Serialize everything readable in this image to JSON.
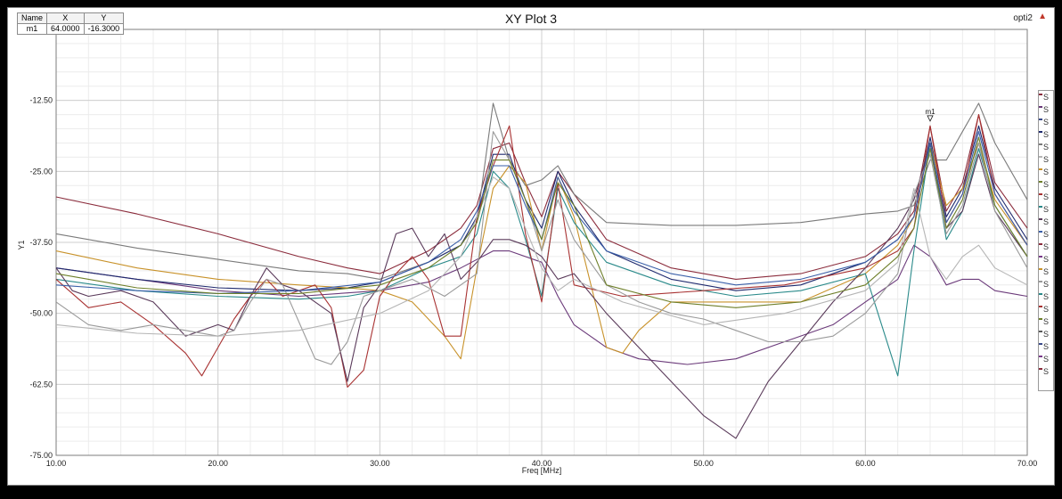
{
  "window": {
    "title": "XY Plot 3",
    "tag": "opti2",
    "tag_arrow": "▲"
  },
  "marker_table": {
    "headers": [
      "Name",
      "X",
      "Y"
    ],
    "rows": [
      {
        "name": "m1",
        "x": "64.0000",
        "y": "-16.3000"
      }
    ]
  },
  "legend": {
    "entries": [
      {
        "label": "S",
        "color": "#8b2c3c"
      },
      {
        "label": "S",
        "color": "#6b3a7a"
      },
      {
        "label": "S",
        "color": "#3a4a8a"
      },
      {
        "label": "S",
        "color": "#1f2a6e"
      },
      {
        "label": "S",
        "color": "#7a7a7a"
      },
      {
        "label": "S",
        "color": "#b5b5b5"
      },
      {
        "label": "S",
        "color": "#c8922a"
      },
      {
        "label": "S",
        "color": "#6e7f2a"
      },
      {
        "label": "S",
        "color": "#a83232"
      },
      {
        "label": "S",
        "color": "#2a8a8a"
      },
      {
        "label": "S",
        "color": "#5a3a5a"
      },
      {
        "label": "S",
        "color": "#3a5fa8"
      },
      {
        "label": "S",
        "color": "#8b2c3c"
      },
      {
        "label": "S",
        "color": "#7a3a8a"
      },
      {
        "label": "S",
        "color": "#c8922a"
      },
      {
        "label": "S",
        "color": "#9a9a9a"
      },
      {
        "label": "S",
        "color": "#2a8a8a"
      },
      {
        "label": "S",
        "color": "#a83232"
      },
      {
        "label": "S",
        "color": "#6e7f2a"
      },
      {
        "label": "S",
        "color": "#5a5a5a"
      },
      {
        "label": "S",
        "color": "#3a4a8a"
      },
      {
        "label": "S",
        "color": "#7a3a8a"
      },
      {
        "label": "S",
        "color": "#8b2c3c"
      }
    ]
  },
  "chart_data": {
    "type": "line",
    "title": "XY Plot 3",
    "xlabel": "Freq [MHz]",
    "ylabel": "Y1",
    "xlim": [
      10,
      70
    ],
    "ylim": [
      -75,
      0
    ],
    "xticks": [
      "10.00",
      "20.00",
      "30.00",
      "40.00",
      "50.00",
      "60.00",
      "70.00"
    ],
    "yticks": [
      "-12.50",
      "-25.00",
      "-37.50",
      "-50.00",
      "-62.50",
      "-75.00"
    ],
    "grid": true,
    "legend_position": "right",
    "markers": [
      {
        "name": "m1",
        "x": 64.0,
        "y": -16.3
      }
    ],
    "series": [
      {
        "color": "#8b2c3c",
        "x": [
          10,
          15,
          20,
          25,
          28,
          30,
          33,
          35,
          36,
          37,
          38,
          39,
          40,
          41,
          42,
          44,
          48,
          52,
          56,
          60,
          62,
          63,
          64,
          65,
          66,
          67,
          68,
          70
        ],
        "y": [
          -29.5,
          -32.5,
          -36,
          -40,
          -42,
          -43,
          -39,
          -35,
          -31,
          -21,
          -20,
          -27,
          -33,
          -25,
          -29,
          -37,
          -42,
          -44,
          -43,
          -40,
          -36,
          -32,
          -17,
          -32,
          -27,
          -15,
          -27,
          -35
        ]
      },
      {
        "color": "#7a7a7a",
        "x": [
          10,
          15,
          20,
          25,
          28,
          30,
          33,
          35,
          36,
          37,
          38,
          39,
          40,
          41,
          42,
          44,
          48,
          52,
          56,
          60,
          62,
          63,
          64,
          65,
          66,
          67,
          68,
          70
        ],
        "y": [
          -36,
          -38.5,
          -40.5,
          -42.5,
          -43,
          -44,
          -41,
          -38,
          -34,
          -13,
          -23,
          -27.5,
          -26.5,
          -24,
          -29,
          -34,
          -34.5,
          -34.5,
          -34,
          -32.5,
          -32,
          -31,
          -23,
          -23,
          -18,
          -13,
          -20,
          -30
        ]
      },
      {
        "color": "#6b3a7a",
        "x": [
          10,
          15,
          20,
          25,
          30,
          33,
          35,
          37,
          38,
          40,
          41,
          42,
          44,
          46,
          49,
          52,
          55,
          58,
          60,
          62,
          63,
          64,
          65,
          66,
          67,
          68,
          70
        ],
        "y": [
          -42,
          -44,
          -46,
          -47,
          -46,
          -44.5,
          -42,
          -39,
          -39,
          -41,
          -47,
          -52,
          -56,
          -58,
          -59,
          -58,
          -55,
          -52,
          -48,
          -44,
          -38,
          -40,
          -45,
          -44,
          -44,
          -46,
          -47
        ]
      },
      {
        "color": "#1f2a6e",
        "x": [
          10,
          15,
          20,
          25,
          28,
          30,
          33,
          35,
          36,
          37,
          38,
          39,
          40,
          41,
          42,
          44,
          48,
          52,
          56,
          60,
          62,
          63,
          64,
          65,
          66,
          67,
          68,
          70
        ],
        "y": [
          -42,
          -44,
          -45.5,
          -46,
          -45.5,
          -44.5,
          -41,
          -38,
          -33,
          -22,
          -22,
          -30,
          -35,
          -25,
          -31,
          -39,
          -44,
          -46,
          -45,
          -41,
          -37,
          -33,
          -19,
          -33,
          -28,
          -17,
          -28,
          -37
        ]
      },
      {
        "color": "#c8922a",
        "x": [
          10,
          15,
          20,
          25,
          28,
          30,
          32,
          34,
          35,
          36,
          37,
          38,
          39,
          40,
          41,
          42,
          44,
          45,
          46,
          48,
          52,
          56,
          60,
          62,
          63,
          64,
          65,
          66,
          67,
          68,
          70
        ],
        "y": [
          -39,
          -42,
          -44,
          -45,
          -45.5,
          -46,
          -48,
          -54,
          -58,
          -42,
          -28,
          -24,
          -27,
          -39,
          -26,
          -33,
          -56,
          -57,
          -53,
          -48,
          -48,
          -48,
          -43,
          -38,
          -33,
          -20,
          -31,
          -28,
          -20,
          -30,
          -38
        ]
      },
      {
        "color": "#2a8a8a",
        "x": [
          10,
          15,
          20,
          25,
          28,
          30,
          33,
          35,
          36,
          37,
          38,
          39,
          40,
          41,
          42,
          44,
          48,
          52,
          56,
          60,
          62,
          63,
          64,
          65,
          66,
          67,
          68,
          70
        ],
        "y": [
          -44,
          -46,
          -47,
          -47.5,
          -47,
          -46,
          -42,
          -40,
          -36,
          -25,
          -28,
          -37,
          -47,
          -28,
          -34,
          -41,
          -45,
          -47,
          -46,
          -43,
          -61,
          -39,
          -20,
          -37,
          -32,
          -21,
          -31,
          -40
        ]
      },
      {
        "color": "#a83232",
        "x": [
          10,
          12,
          14,
          16,
          18,
          19,
          20,
          21,
          22,
          23,
          24,
          26,
          27,
          28,
          29,
          30,
          31,
          32,
          33,
          34,
          35,
          36,
          37,
          38,
          39,
          40,
          41,
          42,
          45,
          50,
          55,
          60,
          62,
          63,
          64,
          65,
          66,
          67,
          68,
          70
        ],
        "y": [
          -44,
          -49,
          -48,
          -52,
          -57,
          -61,
          -56,
          -51,
          -47,
          -44,
          -47,
          -45,
          -49,
          -63,
          -60,
          -47,
          -43,
          -40,
          -44,
          -54,
          -54,
          -33,
          -24,
          -17,
          -36,
          -48,
          -27,
          -45,
          -47,
          -46,
          -45,
          -42,
          -39,
          -35,
          -17,
          -34,
          -29,
          -15,
          -29,
          -38
        ]
      },
      {
        "color": "#5a3a5a",
        "x": [
          10,
          11,
          12,
          14,
          16,
          18,
          20,
          21,
          22,
          23,
          24,
          25,
          26,
          27,
          28,
          29,
          30,
          31,
          32,
          33,
          34,
          35,
          36,
          37,
          38,
          39,
          40,
          41,
          42,
          44,
          46,
          48,
          50,
          52,
          54,
          56,
          58,
          60,
          62,
          63,
          64,
          65,
          66,
          67,
          68,
          70
        ],
        "y": [
          -42,
          -46,
          -47,
          -46,
          -48,
          -54,
          -52,
          -53,
          -47,
          -42,
          -45,
          -46,
          -48,
          -50,
          -62,
          -49,
          -45,
          -36,
          -35,
          -40,
          -36,
          -44,
          -41,
          -37,
          -37,
          -38,
          -40,
          -44,
          -43,
          -50,
          -56,
          -62,
          -68,
          -72,
          -62,
          -55,
          -48,
          -42,
          -35,
          -30,
          -20,
          -35,
          -32,
          -22,
          -32,
          -40
        ]
      },
      {
        "color": "#9a9a9a",
        "x": [
          10,
          12,
          14,
          16,
          18,
          20,
          21,
          22,
          23,
          24,
          26,
          27,
          28,
          29,
          30,
          32,
          34,
          36,
          37,
          38,
          39,
          40,
          41,
          42,
          44,
          46,
          48,
          50,
          52,
          54,
          56,
          58,
          60,
          62,
          63,
          64,
          65,
          66,
          67,
          68,
          70
        ],
        "y": [
          -48,
          -52,
          -53,
          -52,
          -53,
          -54,
          -53,
          -48,
          -44,
          -45,
          -58,
          -59,
          -55,
          -47,
          -46,
          -44,
          -47,
          -43,
          -18,
          -23,
          -30,
          -39,
          -30,
          -37,
          -45,
          -48,
          -50,
          -51,
          -53,
          -55,
          -55,
          -54,
          -50,
          -43,
          -29,
          -22,
          -36,
          -31,
          -20,
          -32,
          -42
        ]
      },
      {
        "color": "#b5b5b5",
        "x": [
          10,
          15,
          20,
          25,
          30,
          33,
          35,
          37,
          38,
          39,
          40,
          41,
          42,
          45,
          50,
          55,
          60,
          62,
          63,
          64,
          65,
          66,
          67,
          68,
          70
        ],
        "y": [
          -52,
          -53.5,
          -54,
          -53,
          -50,
          -46,
          -40,
          -26,
          -28,
          -35,
          -42,
          -46,
          -44,
          -48,
          -52,
          -50,
          -46,
          -41,
          -28,
          -40,
          -44,
          -40,
          -38,
          -42,
          -45
        ]
      },
      {
        "color": "#3a5fa8",
        "x": [
          10,
          15,
          20,
          25,
          30,
          33,
          35,
          36,
          37,
          38,
          39,
          40,
          41,
          42,
          44,
          48,
          52,
          56,
          60,
          62,
          63,
          64,
          65,
          66,
          67,
          68,
          70
        ],
        "y": [
          -45,
          -46,
          -46.5,
          -46,
          -44.5,
          -41,
          -37,
          -32,
          -24,
          -24,
          -31,
          -37,
          -26,
          -32,
          -39,
          -43,
          -45,
          -44,
          -41,
          -37,
          -33,
          -20,
          -34,
          -29,
          -18,
          -29,
          -38
        ]
      },
      {
        "color": "#6e7f2a",
        "x": [
          10,
          15,
          20,
          25,
          30,
          33,
          35,
          36,
          37,
          38,
          39,
          40,
          41,
          42,
          44,
          48,
          52,
          56,
          60,
          62,
          63,
          64,
          65,
          66,
          67,
          68,
          70
        ],
        "y": [
          -43,
          -45.5,
          -46.5,
          -46.5,
          -45,
          -42,
          -38,
          -34,
          -23,
          -23,
          -30,
          -37,
          -27,
          -31,
          -45,
          -48,
          -49,
          -48,
          -45,
          -40,
          -35,
          -21,
          -35,
          -30,
          -19,
          -31,
          -40
        ]
      }
    ]
  }
}
